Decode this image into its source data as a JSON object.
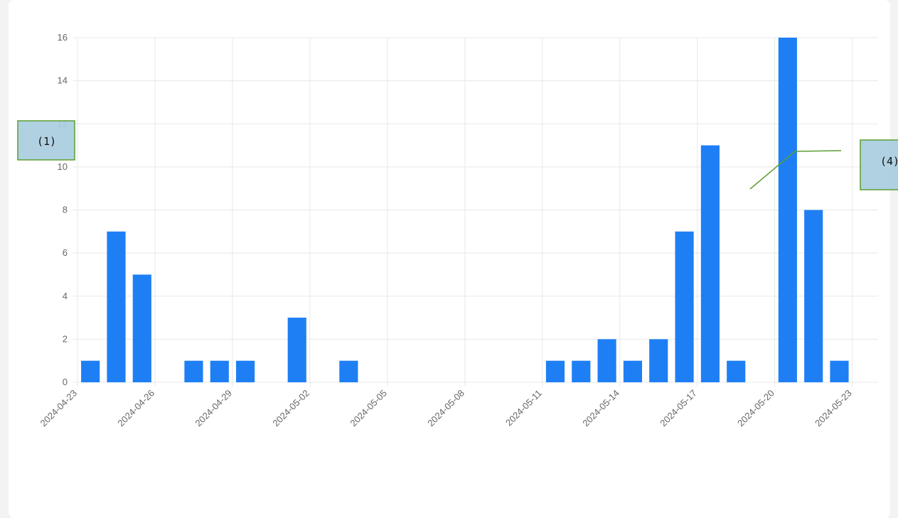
{
  "chart_data": {
    "type": "bar",
    "x": [
      "2024-04-23",
      "2024-04-24",
      "2024-04-25",
      "2024-04-27",
      "2024-04-28",
      "2024-04-29",
      "2024-05-01",
      "2024-05-03",
      "2024-05-11",
      "2024-05-12",
      "2024-05-13",
      "2024-05-14",
      "2024-05-15",
      "2024-05-16",
      "2024-05-17",
      "2024-05-18",
      "2024-05-20",
      "2024-05-21",
      "2024-05-22"
    ],
    "values": [
      1,
      7,
      5,
      1,
      1,
      1,
      3,
      1,
      1,
      1,
      2,
      1,
      2,
      7,
      11,
      1,
      16,
      8,
      1
    ],
    "color": "#1e7ff5",
    "xlim": [
      "2024-04-23",
      "2024-05-24"
    ],
    "xticks": [
      "2024-04-23",
      "2024-04-26",
      "2024-04-29",
      "2024-05-02",
      "2024-05-05",
      "2024-05-08",
      "2024-05-11",
      "2024-05-14",
      "2024-05-17",
      "2024-05-20",
      "2024-05-23"
    ],
    "ylim": [
      0,
      16
    ],
    "yticks": [
      0,
      2,
      4,
      6,
      8,
      10,
      12,
      14,
      16
    ],
    "grid": true,
    "annotations": [
      "(1)",
      "(4)"
    ]
  }
}
